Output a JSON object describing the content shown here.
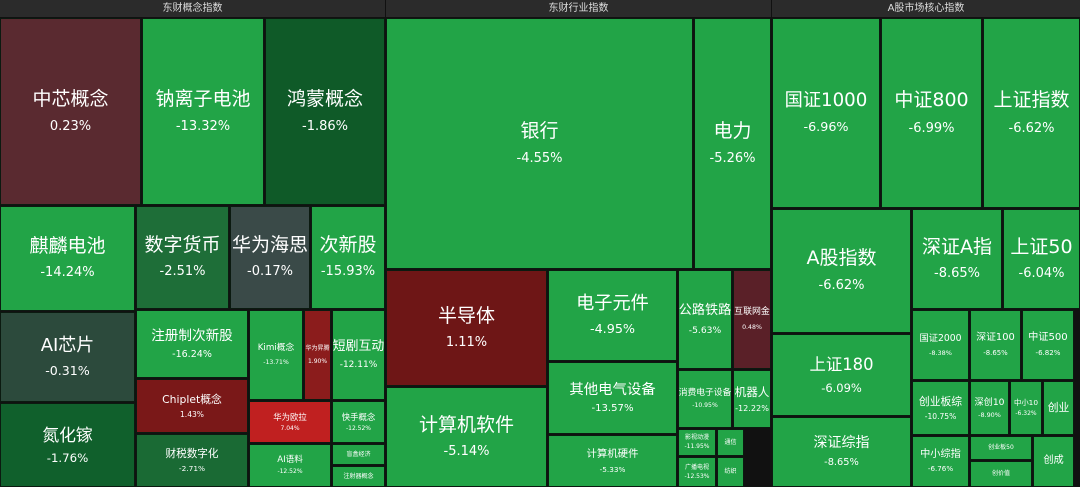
{
  "panels": [
    {
      "title": "东财概念指数",
      "tiles": [
        {
          "name": "中芯概念",
          "change": "0.23%"
        },
        {
          "name": "钠离子电池",
          "change": "-13.32%"
        },
        {
          "name": "鸿蒙概念",
          "change": "-1.86%"
        },
        {
          "name": "麒麟电池",
          "change": "-14.24%"
        },
        {
          "name": "数字货币",
          "change": "-2.51%"
        },
        {
          "name": "华为海思",
          "change": "-0.17%"
        },
        {
          "name": "次新股",
          "change": "-15.93%"
        },
        {
          "name": "AI芯片",
          "change": "-0.31%"
        },
        {
          "name": "注册制次新股",
          "change": "-16.24%"
        },
        {
          "name": "Kimi概念",
          "change": "-13.71%"
        },
        {
          "name": "华为昇腾",
          "change": "1.90%"
        },
        {
          "name": "短剧互动",
          "change": "-12.11%"
        },
        {
          "name": "氮化镓",
          "change": "-1.76%"
        },
        {
          "name": "Chiplet概念",
          "change": "1.43%"
        },
        {
          "name": "华为欧拉",
          "change": "7.04%"
        },
        {
          "name": "快手概念",
          "change": "-12.52%"
        },
        {
          "name": "财税数字化",
          "change": "-2.71%"
        },
        {
          "name": "AI语料",
          "change": "-12.52%"
        },
        {
          "name": "盲盒经济"
        },
        {
          "name": "注射器概念"
        }
      ]
    },
    {
      "title": "东财行业指数",
      "tiles": [
        {
          "name": "银行",
          "change": "-4.55%"
        },
        {
          "name": "电力",
          "change": "-5.26%"
        },
        {
          "name": "半导体",
          "change": "1.11%"
        },
        {
          "name": "电子元件",
          "change": "-4.95%"
        },
        {
          "name": "公路铁路",
          "change": "-5.63%"
        },
        {
          "name": "互联网金",
          "change": "0.48%"
        },
        {
          "name": "其他电气设备",
          "change": "-13.57%"
        },
        {
          "name": "消费电子设备",
          "change": "-10.95%"
        },
        {
          "name": "机器人",
          "change": "-12.22%"
        },
        {
          "name": "计算机软件",
          "change": "-5.14%"
        },
        {
          "name": "计算机硬件",
          "change": "-5.33%"
        },
        {
          "name": "影视动漫",
          "change": "-11.95%"
        },
        {
          "name": "广播电视",
          "change": "-12.53%"
        },
        {
          "name": "通信"
        },
        {
          "name": "纺织"
        }
      ]
    },
    {
      "title": "A股市场核心指数",
      "tiles": [
        {
          "name": "国证1000",
          "change": "-6.96%"
        },
        {
          "name": "中证800",
          "change": "-6.99%"
        },
        {
          "name": "上证指数",
          "change": "-6.62%"
        },
        {
          "name": "A股指数",
          "change": "-6.62%"
        },
        {
          "name": "深证A指",
          "change": "-8.65%"
        },
        {
          "name": "上证50",
          "change": "-6.04%"
        },
        {
          "name": "上证180",
          "change": "-6.09%"
        },
        {
          "name": "国证2000",
          "change": "-8.38%"
        },
        {
          "name": "深证100",
          "change": "-8.65%"
        },
        {
          "name": "中证500",
          "change": "-6.82%"
        },
        {
          "name": "深证综指",
          "change": "-8.65%"
        },
        {
          "name": "创业板综",
          "change": "-10.75%"
        },
        {
          "name": "深创10",
          "change": "-8.90%"
        },
        {
          "name": "中小10",
          "change": "-6.32%"
        },
        {
          "name": "创业"
        },
        {
          "name": "中小综指",
          "change": "-6.76%"
        },
        {
          "name": "创业板50"
        },
        {
          "name": "创价值"
        },
        {
          "name": "创成"
        }
      ]
    }
  ]
}
